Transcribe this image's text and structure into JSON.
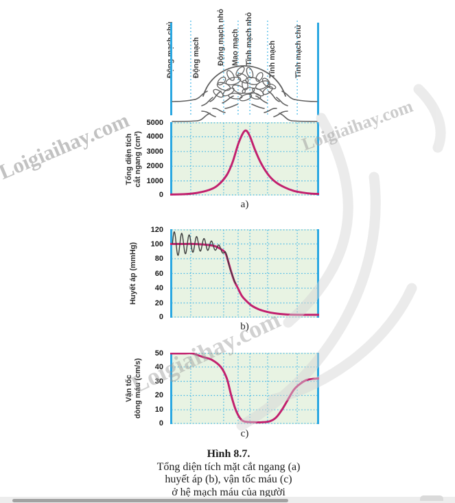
{
  "watermark": {
    "text": "Loigiaihay.com"
  },
  "style_colors": {
    "plot_bg": "#e8f3e3",
    "grid": "#3fb5e6",
    "plot_edge": "#2aa7e1",
    "curve": "#c2206e",
    "pulse_line": "#3b3b3b",
    "vessel_outline": "#5f5f5f"
  },
  "diagram": {
    "vessel_labels": [
      "Động mạch chủ",
      "Động mạch",
      "Động mạch nhỏ",
      "Mao mạch",
      "Tĩnh mạch nhỏ",
      "Tĩnh mạch",
      "Tĩnh mạch chủ"
    ]
  },
  "chart_data": [
    {
      "type": "line",
      "panel_label": "a)",
      "ylabel": "Tổng diện tích cắt ngang (cm²)",
      "ylabel_lines": [
        "Tổng diện tích",
        "cắt ngang (cm²)"
      ],
      "ylim": [
        0,
        5000
      ],
      "yticks": [
        0,
        1000,
        2000,
        3000,
        4000,
        5000
      ],
      "x_axis_note": "vị trí trong hệ mạch từ động mạch chủ đến tĩnh mạch chủ (không có nhãn số)",
      "x_boundaries": [
        0.138,
        0.359,
        0.456,
        0.535,
        0.654,
        0.853
      ],
      "grid": "dotted",
      "series": [
        {
          "name": "Tổng diện tích cắt ngang",
          "color": "#c2206e",
          "points": [
            [
              0,
              70
            ],
            [
              0.1,
              100
            ],
            [
              0.18,
              180
            ],
            [
              0.26,
              380
            ],
            [
              0.32,
              700
            ],
            [
              0.38,
              1400
            ],
            [
              0.42,
              2300
            ],
            [
              0.46,
              3600
            ],
            [
              0.5,
              4400
            ],
            [
              0.53,
              4150
            ],
            [
              0.57,
              3100
            ],
            [
              0.61,
              2200
            ],
            [
              0.66,
              1400
            ],
            [
              0.71,
              900
            ],
            [
              0.77,
              550
            ],
            [
              0.83,
              320
            ],
            [
              0.89,
              200
            ],
            [
              0.95,
              130
            ],
            [
              1,
              110
            ]
          ]
        }
      ]
    },
    {
      "type": "line",
      "panel_label": "b)",
      "ylabel": "Huyết áp (mmHg)",
      "ylabel_lines": [
        "Huyết áp (mmHg)"
      ],
      "ylim": [
        0,
        120
      ],
      "yticks": [
        0,
        20,
        40,
        60,
        80,
        100,
        120
      ],
      "x_boundaries": [
        0.138,
        0.359,
        0.456,
        0.535,
        0.654,
        0.853
      ],
      "grid": "dotted",
      "series": [
        {
          "name": "Huyết áp trung bình",
          "color": "#c2206e",
          "points": [
            [
              0,
              100
            ],
            [
              0.08,
              100
            ],
            [
              0.16,
              100
            ],
            [
              0.24,
              99
            ],
            [
              0.3,
              97
            ],
            [
              0.34,
              93
            ],
            [
              0.37,
              88
            ],
            [
              0.39,
              76
            ],
            [
              0.41,
              62
            ],
            [
              0.43,
              50
            ],
            [
              0.455,
              40
            ],
            [
              0.48,
              30
            ],
            [
              0.51,
              23
            ],
            [
              0.55,
              16
            ],
            [
              0.6,
              11
            ],
            [
              0.65,
              8
            ],
            [
              0.7,
              6
            ],
            [
              0.78,
              4.5
            ],
            [
              0.88,
              4
            ],
            [
              1,
              4
            ]
          ]
        },
        {
          "name": "Dao động huyết áp theo nhịp tim",
          "color": "#3b3b3b",
          "pulse": {
            "x_start": 0.015,
            "x_end": 0.44,
            "cycles": 8.5,
            "amplitude": 17,
            "decay": 1.05
          }
        }
      ]
    },
    {
      "type": "line",
      "panel_label": "c)",
      "ylabel": "Vận tốc dòng máu (cm/s)",
      "ylabel_lines": [
        "Vận tốc",
        "dòng máu (cm/s)"
      ],
      "ylim": [
        0,
        50
      ],
      "yticks": [
        0,
        10,
        20,
        30,
        40,
        50
      ],
      "x_boundaries": [
        0.138,
        0.359,
        0.456,
        0.535,
        0.654,
        0.853
      ],
      "grid": "dotted",
      "series": [
        {
          "name": "Vận tốc dòng máu",
          "color": "#c2206e",
          "points": [
            [
              0,
              50
            ],
            [
              0.1,
              50
            ],
            [
              0.15,
              49.5
            ],
            [
              0.22,
              47
            ],
            [
              0.28,
              45
            ],
            [
              0.34,
              40
            ],
            [
              0.38,
              32
            ],
            [
              0.41,
              20
            ],
            [
              0.44,
              10
            ],
            [
              0.47,
              4
            ],
            [
              0.5,
              1.8
            ],
            [
              0.56,
              1.3
            ],
            [
              0.62,
              1.3
            ],
            [
              0.67,
              2
            ],
            [
              0.71,
              4.5
            ],
            [
              0.75,
              10
            ],
            [
              0.79,
              17
            ],
            [
              0.83,
              24
            ],
            [
              0.87,
              28
            ],
            [
              0.92,
              31
            ],
            [
              1,
              32
            ]
          ]
        }
      ]
    }
  ],
  "caption": {
    "heading": "Hình 8.7.",
    "lines": [
      "Tổng diện tích mặt cắt ngang (a)",
      "huyết áp (b), vận tốc máu (c)",
      "ở hệ mạch máu của người"
    ]
  }
}
